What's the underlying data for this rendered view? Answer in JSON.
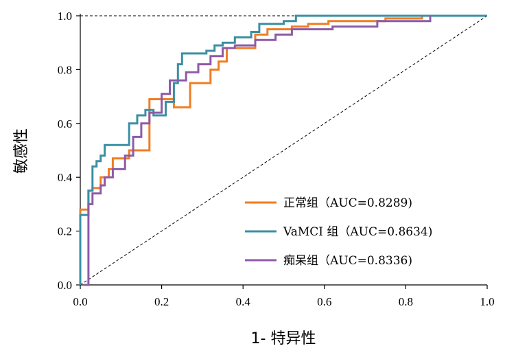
{
  "chart_data": {
    "type": "line",
    "title": "",
    "xlabel": "1- 特异性",
    "ylabel": "敏感性",
    "xlim": [
      0,
      1
    ],
    "ylim": [
      0,
      1
    ],
    "x_ticks": [
      "0.0",
      "0.2",
      "0.4",
      "0.6",
      "0.8",
      "1.0"
    ],
    "y_ticks": [
      "0.0",
      "0.2",
      "0.4",
      "0.6",
      "0.8",
      "1.0"
    ],
    "legend_position": "bottom-right",
    "reference_line": {
      "from": [
        0,
        0
      ],
      "to": [
        1,
        1
      ],
      "style": "dashed"
    },
    "top_reference_line": {
      "y": 1.0,
      "style": "dashed"
    },
    "series": [
      {
        "name": "正常组（AUC=0.8289)",
        "color": "#f07d22",
        "points": [
          [
            0,
            0
          ],
          [
            0,
            0.28
          ],
          [
            0.02,
            0.28
          ],
          [
            0.02,
            0.35
          ],
          [
            0.03,
            0.35
          ],
          [
            0.03,
            0.36
          ],
          [
            0.05,
            0.36
          ],
          [
            0.05,
            0.4
          ],
          [
            0.07,
            0.4
          ],
          [
            0.07,
            0.43
          ],
          [
            0.08,
            0.43
          ],
          [
            0.08,
            0.47
          ],
          [
            0.12,
            0.47
          ],
          [
            0.12,
            0.5
          ],
          [
            0.17,
            0.5
          ],
          [
            0.17,
            0.69
          ],
          [
            0.23,
            0.69
          ],
          [
            0.23,
            0.66
          ],
          [
            0.27,
            0.66
          ],
          [
            0.27,
            0.75
          ],
          [
            0.32,
            0.75
          ],
          [
            0.32,
            0.8
          ],
          [
            0.34,
            0.8
          ],
          [
            0.34,
            0.83
          ],
          [
            0.36,
            0.83
          ],
          [
            0.36,
            0.88
          ],
          [
            0.43,
            0.88
          ],
          [
            0.43,
            0.93
          ],
          [
            0.46,
            0.93
          ],
          [
            0.46,
            0.95
          ],
          [
            0.52,
            0.95
          ],
          [
            0.52,
            0.96
          ],
          [
            0.56,
            0.96
          ],
          [
            0.56,
            0.97
          ],
          [
            0.61,
            0.97
          ],
          [
            0.61,
            0.98
          ],
          [
            0.75,
            0.98
          ],
          [
            0.75,
            0.99
          ],
          [
            0.84,
            0.99
          ],
          [
            0.84,
            1.0
          ],
          [
            1.0,
            1.0
          ]
        ]
      },
      {
        "name": "VaMCI 组（AUC=0.8634)",
        "color": "#3a8fa3",
        "points": [
          [
            0,
            0
          ],
          [
            0,
            0.26
          ],
          [
            0.02,
            0.26
          ],
          [
            0.02,
            0.35
          ],
          [
            0.03,
            0.35
          ],
          [
            0.03,
            0.44
          ],
          [
            0.04,
            0.44
          ],
          [
            0.04,
            0.46
          ],
          [
            0.05,
            0.46
          ],
          [
            0.05,
            0.48
          ],
          [
            0.06,
            0.48
          ],
          [
            0.06,
            0.52
          ],
          [
            0.12,
            0.52
          ],
          [
            0.12,
            0.6
          ],
          [
            0.14,
            0.6
          ],
          [
            0.14,
            0.63
          ],
          [
            0.16,
            0.63
          ],
          [
            0.16,
            0.65
          ],
          [
            0.18,
            0.65
          ],
          [
            0.18,
            0.63
          ],
          [
            0.21,
            0.63
          ],
          [
            0.21,
            0.68
          ],
          [
            0.23,
            0.68
          ],
          [
            0.23,
            0.75
          ],
          [
            0.24,
            0.75
          ],
          [
            0.24,
            0.82
          ],
          [
            0.25,
            0.82
          ],
          [
            0.25,
            0.86
          ],
          [
            0.31,
            0.86
          ],
          [
            0.31,
            0.87
          ],
          [
            0.33,
            0.87
          ],
          [
            0.33,
            0.89
          ],
          [
            0.35,
            0.89
          ],
          [
            0.35,
            0.9
          ],
          [
            0.38,
            0.9
          ],
          [
            0.38,
            0.92
          ],
          [
            0.42,
            0.92
          ],
          [
            0.42,
            0.94
          ],
          [
            0.44,
            0.94
          ],
          [
            0.44,
            0.97
          ],
          [
            0.5,
            0.97
          ],
          [
            0.5,
            0.98
          ],
          [
            0.53,
            0.98
          ],
          [
            0.53,
            1.0
          ],
          [
            1.0,
            1.0
          ]
        ]
      },
      {
        "name": "痴呆组（AUC=0.8336)",
        "color": "#8e5aa8",
        "points": [
          [
            0.01,
            0
          ],
          [
            0.02,
            0
          ],
          [
            0.02,
            0.3
          ],
          [
            0.03,
            0.3
          ],
          [
            0.03,
            0.34
          ],
          [
            0.05,
            0.34
          ],
          [
            0.05,
            0.37
          ],
          [
            0.06,
            0.37
          ],
          [
            0.06,
            0.4
          ],
          [
            0.08,
            0.4
          ],
          [
            0.08,
            0.43
          ],
          [
            0.11,
            0.43
          ],
          [
            0.11,
            0.48
          ],
          [
            0.13,
            0.48
          ],
          [
            0.13,
            0.55
          ],
          [
            0.15,
            0.55
          ],
          [
            0.15,
            0.6
          ],
          [
            0.17,
            0.6
          ],
          [
            0.17,
            0.64
          ],
          [
            0.2,
            0.64
          ],
          [
            0.2,
            0.71
          ],
          [
            0.22,
            0.71
          ],
          [
            0.22,
            0.76
          ],
          [
            0.26,
            0.76
          ],
          [
            0.26,
            0.79
          ],
          [
            0.29,
            0.79
          ],
          [
            0.29,
            0.82
          ],
          [
            0.32,
            0.82
          ],
          [
            0.32,
            0.85
          ],
          [
            0.35,
            0.85
          ],
          [
            0.35,
            0.88
          ],
          [
            0.38,
            0.88
          ],
          [
            0.38,
            0.89
          ],
          [
            0.43,
            0.89
          ],
          [
            0.43,
            0.91
          ],
          [
            0.48,
            0.91
          ],
          [
            0.48,
            0.93
          ],
          [
            0.52,
            0.93
          ],
          [
            0.52,
            0.95
          ],
          [
            0.62,
            0.95
          ],
          [
            0.62,
            0.96
          ],
          [
            0.73,
            0.96
          ],
          [
            0.73,
            0.98
          ],
          [
            0.86,
            0.98
          ],
          [
            0.86,
            1.0
          ]
        ]
      }
    ]
  }
}
